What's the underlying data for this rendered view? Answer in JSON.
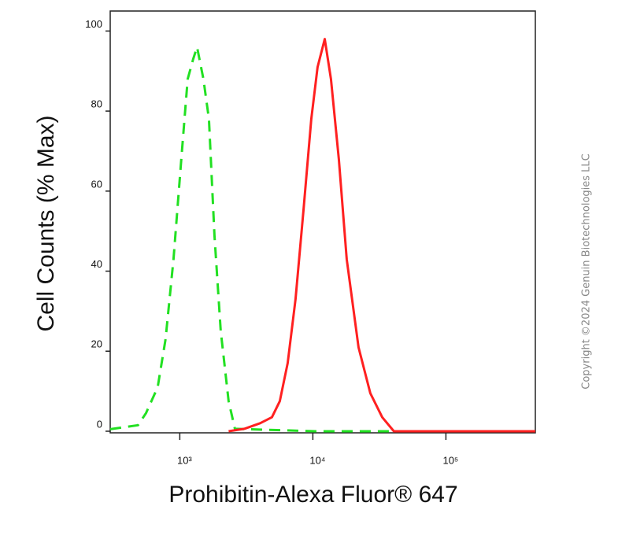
{
  "chart_data": {
    "type": "line",
    "xlabel": "Prohibitin-Alexa Fluor® 647",
    "ylabel": "Cell Counts (% Max)",
    "annotation": "Copyright ©2024 Genuin Biotechnologies LLC",
    "xscale": "log",
    "xlim": [
      300,
      470000
    ],
    "ylim": [
      -0.4,
      105
    ],
    "xticks": [
      {
        "value": 1000,
        "label": "10³"
      },
      {
        "value": 10000,
        "label": "10⁴"
      },
      {
        "value": 100000,
        "label": "10⁵"
      }
    ],
    "yticks": [
      0,
      20,
      40,
      60,
      80,
      100
    ],
    "series": [
      {
        "color": "#22e022",
        "dash": true,
        "x": [
          300,
          485,
          557,
          682,
          782,
          897,
          1027,
          1146,
          1261,
          1349,
          1505,
          1656,
          1821,
          2031,
          2328,
          2596,
          10420,
          470000
        ],
        "values": [
          0.5,
          1.5,
          4.5,
          11,
          23,
          43,
          68,
          88,
          93,
          96,
          88,
          78,
          49,
          25,
          7.5,
          0.6,
          0,
          0
        ]
      },
      {
        "color": "#ff2020",
        "dash": false,
        "x": [
          2328,
          3053,
          4017,
          4925,
          5640,
          6466,
          7410,
          8497,
          9730,
          10860,
          12280,
          13690,
          15680,
          17960,
          22030,
          27050,
          33210,
          40650,
          470000
        ],
        "values": [
          0,
          0.6,
          2,
          3.5,
          7.5,
          17,
          33,
          55,
          78,
          91,
          98,
          88,
          68,
          43,
          21,
          9.5,
          3.5,
          0,
          0
        ]
      }
    ]
  }
}
